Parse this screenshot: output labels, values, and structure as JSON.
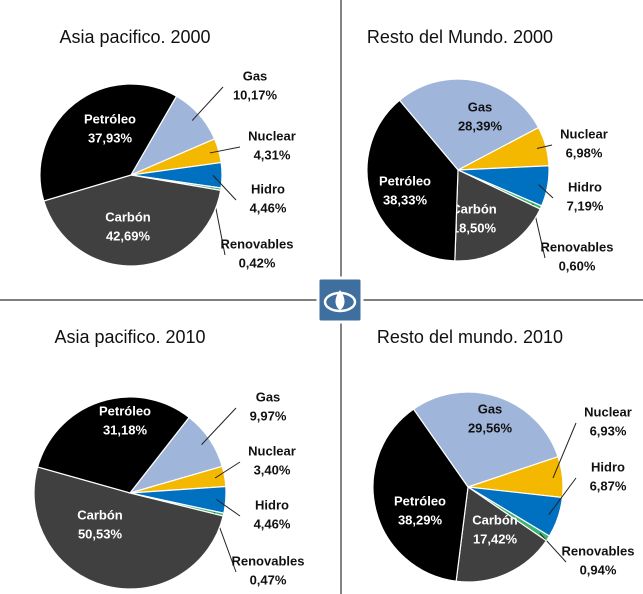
{
  "chart_data": [
    {
      "type": "pie",
      "title": "Asia pacifico. 2000",
      "categories": [
        "Gas",
        "Nuclear",
        "Hidro",
        "Renovables",
        "Carbón",
        "Petróleo"
      ],
      "values": [
        10.17,
        4.31,
        4.46,
        0.42,
        42.69,
        37.93
      ],
      "value_labels": [
        "10,17%",
        "4,31%",
        "4,46%",
        "0,42%",
        "42,69%",
        "37,93%"
      ],
      "colors": [
        "#9fb5da",
        "#f5b800",
        "#0070c0",
        "#3cb371",
        "#404040",
        "#000000"
      ]
    },
    {
      "type": "pie",
      "title": "Resto del Mundo. 2000",
      "categories": [
        "Gas",
        "Nuclear",
        "Hidro",
        "Renovables",
        "Carbón",
        "Petróleo"
      ],
      "values": [
        28.39,
        6.98,
        7.19,
        0.6,
        18.5,
        38.33
      ],
      "value_labels": [
        "28,39%",
        "6,98%",
        "7,19%",
        "0,60%",
        "18,50%",
        "38,33%"
      ],
      "colors": [
        "#9fb5da",
        "#f5b800",
        "#0070c0",
        "#3cb371",
        "#404040",
        "#000000"
      ]
    },
    {
      "type": "pie",
      "title": "Asia pacifico. 2010",
      "categories": [
        "Gas",
        "Nuclear",
        "Hidro",
        "Renovables",
        "Carbón",
        "Petróleo"
      ],
      "values": [
        9.97,
        3.4,
        4.46,
        0.47,
        50.53,
        31.18
      ],
      "value_labels": [
        "9,97%",
        "3,40%",
        "4,46%",
        "0,47%",
        "50,53%",
        "31,18%"
      ],
      "colors": [
        "#9fb5da",
        "#f5b800",
        "#0070c0",
        "#3cb371",
        "#404040",
        "#000000"
      ]
    },
    {
      "type": "pie",
      "title": "Resto del mundo. 2010",
      "categories": [
        "Gas",
        "Nuclear",
        "Hidro",
        "Renovables",
        "Carbón",
        "Petróleo"
      ],
      "values": [
        29.56,
        6.93,
        6.87,
        0.94,
        17.42,
        38.29
      ],
      "value_labels": [
        "29,56%",
        "6,93%",
        "6,87%",
        "0,94%",
        "17,42%",
        "38,29%"
      ],
      "colors": [
        "#9fb5da",
        "#f5b800",
        "#0070c0",
        "#3cb371",
        "#404040",
        "#000000"
      ]
    }
  ]
}
